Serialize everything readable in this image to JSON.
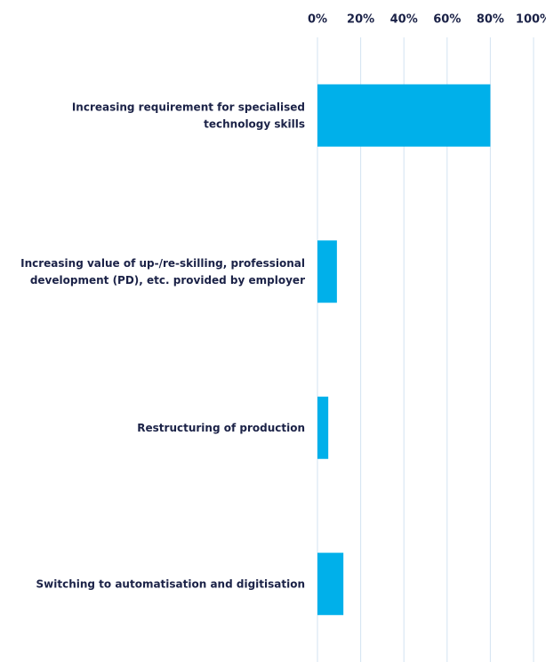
{
  "chart_data": {
    "type": "bar",
    "orientation": "horizontal",
    "categories": [
      "Increasing requirement for specialised\ntechnology skills",
      "Increasing value of up-/re-skilling, professional\ndevelopment (PD), etc. provided by employer",
      "Restructuring of production",
      "Switching to automatisation and digitisation"
    ],
    "values": [
      80,
      9,
      5,
      12
    ],
    "color": "#00b0ea",
    "xlim": [
      0,
      100
    ],
    "xticks": [
      {
        "value": 0,
        "label": "0%"
      },
      {
        "value": 20,
        "label": "20%"
      },
      {
        "value": 40,
        "label": "40%"
      },
      {
        "value": 60,
        "label": "60%"
      },
      {
        "value": 80,
        "label": "80%"
      },
      {
        "value": 100,
        "label": "100%"
      }
    ],
    "grid": true
  }
}
